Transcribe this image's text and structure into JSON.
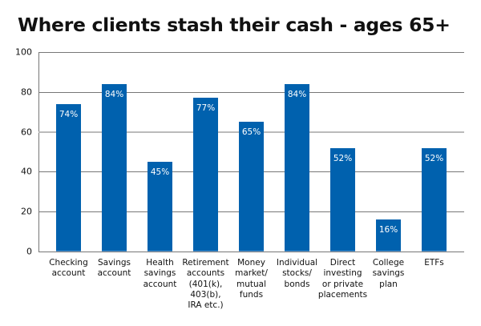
{
  "title": "Where clients stash their cash - ages 65+",
  "colors": {
    "bar": "#0061AE",
    "bar_label": "#FFFFFF",
    "grid": "#777777",
    "grid_light": "#BBBBBB"
  },
  "y_ticks": [
    "100",
    "80",
    "60",
    "40",
    "20",
    "0"
  ],
  "chart_data": {
    "type": "bar",
    "title": "Where clients stash their cash - ages 65+",
    "xlabel": "",
    "ylabel": "",
    "ylim": [
      0,
      100
    ],
    "yticks": [
      0,
      20,
      40,
      60,
      80,
      100
    ],
    "grid": true,
    "legend": null,
    "categories": [
      "Checking account",
      "Savings account",
      "Health savings account",
      "Retirement accounts (401(k), 403(b), IRA etc.)",
      "Money market/ mutual funds",
      "Individual stocks/ bonds",
      "Direct investing or private placements",
      "College savings plan",
      "ETFs"
    ],
    "values": [
      74,
      84,
      45,
      77,
      65,
      84,
      52,
      16,
      52
    ],
    "data_labels": [
      "74%",
      "84%",
      "45%",
      "77%",
      "65%",
      "84%",
      "52%",
      "16%",
      "52%"
    ]
  },
  "x_labels": [
    [
      "Checking",
      "account"
    ],
    [
      "Savings",
      "account"
    ],
    [
      "Health",
      "savings",
      "account"
    ],
    [
      "Retirement",
      "accounts",
      "(401(k),",
      "403(b),",
      "IRA etc.)"
    ],
    [
      "Money",
      "market/",
      "mutual",
      "funds"
    ],
    [
      "Individual",
      "stocks/",
      "bonds"
    ],
    [
      "Direct",
      "investing",
      "or private",
      "placements"
    ],
    [
      "College",
      "savings",
      "plan"
    ],
    [
      "ETFs"
    ]
  ]
}
